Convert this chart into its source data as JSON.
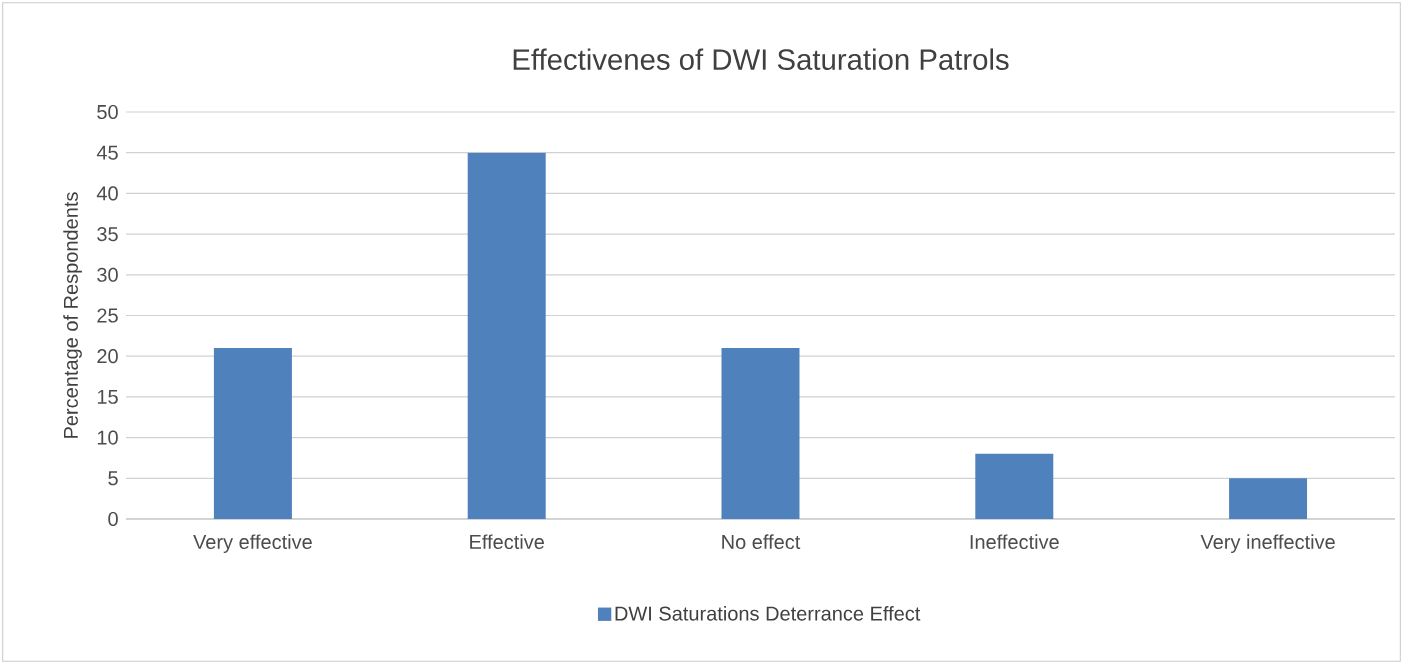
{
  "chart_data": {
    "type": "bar",
    "title": "Effectivenes of DWI Saturation Patrols",
    "ylabel": "Percentage of Respondents",
    "categories": [
      "Very effective",
      "Effective",
      "No effect",
      "Ineffective",
      "Very ineffective"
    ],
    "series": [
      {
        "name": "DWI Saturations Deterrance Effect",
        "color": "#4f81bd",
        "values": [
          21,
          45,
          21,
          8,
          5
        ]
      }
    ],
    "ylim": [
      0,
      50
    ],
    "yticks": [
      0,
      5,
      10,
      15,
      20,
      25,
      30,
      35,
      40,
      45,
      50
    ],
    "grid": "y",
    "legend": "bottom"
  }
}
